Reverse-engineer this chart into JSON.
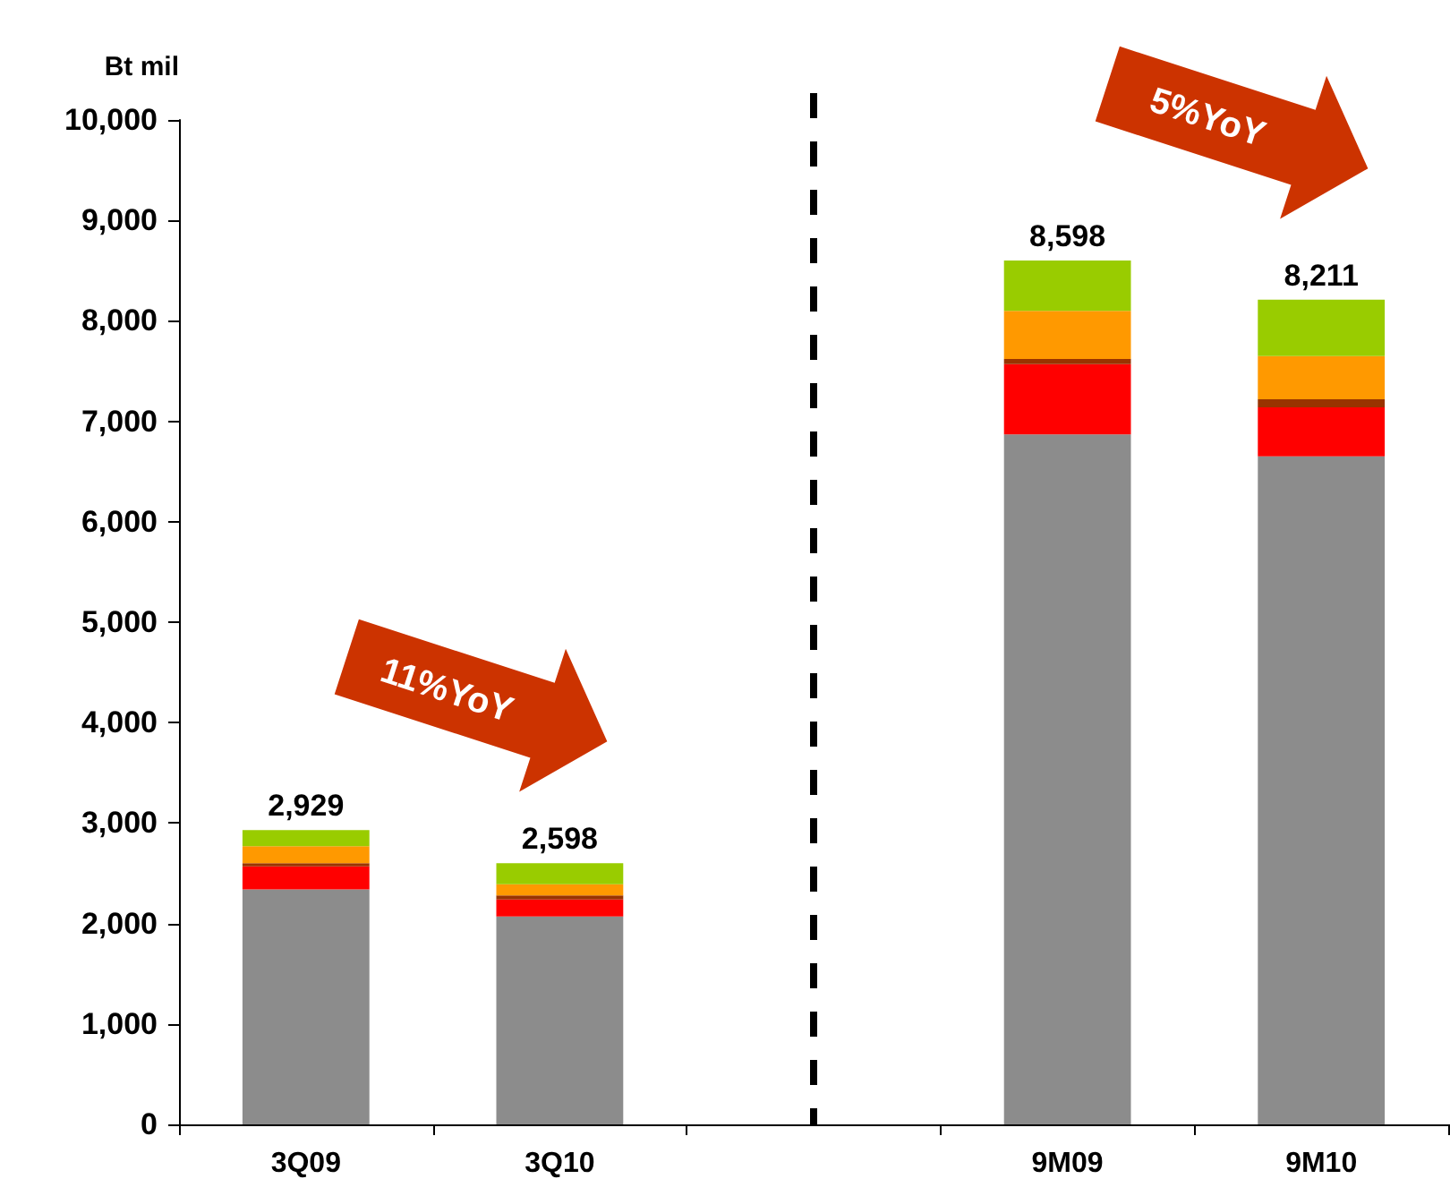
{
  "chart_data": {
    "type": "bar",
    "stacked": true,
    "ylabel": "Bt mil",
    "categories": [
      "3Q09",
      "3Q10",
      null,
      "9M09",
      "9M10"
    ],
    "series": [
      {
        "color": "#8c8c8c",
        "values": [
          2340,
          2070,
          null,
          6870,
          6650
        ]
      },
      {
        "color": "#ff0000",
        "values": [
          230,
          170,
          null,
          700,
          490
        ]
      },
      {
        "color": "#993300",
        "values": [
          30,
          40,
          null,
          50,
          80
        ]
      },
      {
        "color": "#ff9900",
        "values": [
          170,
          110,
          null,
          480,
          430
        ]
      },
      {
        "color": "#99cc00",
        "values": [
          160,
          210,
          null,
          500,
          560
        ]
      }
    ],
    "totals": [
      "2,929",
      "2,598",
      null,
      "8,598",
      "8,211"
    ],
    "annotations": [
      "11%YoY",
      "5%YoY"
    ],
    "ylim": [
      0,
      10000
    ],
    "yticks": [
      0,
      {
        "value": 1000,
        "label": "1,000"
      },
      {
        "value": 2000,
        "label": "2,000"
      },
      {
        "value": 3000,
        "label": "3,000"
      },
      {
        "value": 4000,
        "label": "4,000"
      },
      {
        "value": 5000,
        "label": "5,000"
      },
      {
        "value": 6000,
        "label": "6,000"
      },
      {
        "value": 7000,
        "label": "7,000"
      },
      {
        "value": 8000,
        "label": "8,000"
      },
      {
        "value": 9000,
        "label": "9,000"
      },
      {
        "value": 10000,
        "label": "10,000"
      }
    ]
  }
}
